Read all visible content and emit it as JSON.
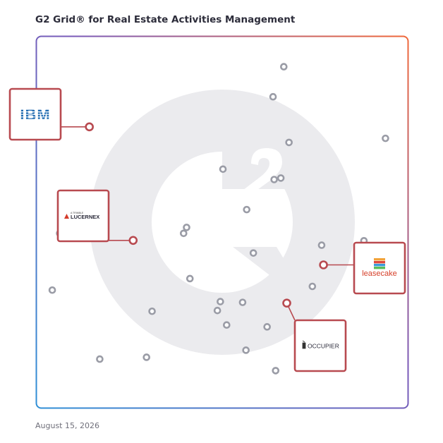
{
  "title": "G2 Grid® for Real Estate Activities Management",
  "date": "August 15, 2026",
  "colors": {
    "frame_start": "#2f8fd6",
    "frame_mid": "#7a5ab8",
    "frame_end": "#f0683a",
    "highlight": "#b84a50",
    "dot": "#9a9ca6",
    "watermark": "#ebebee"
  },
  "chart_data": {
    "type": "scatter",
    "title": "G2 Grid® for Real Estate Activities Management",
    "xlabel": "",
    "ylabel": "",
    "xlim": [
      0,
      1
    ],
    "ylim": [
      0,
      1
    ],
    "grid": true,
    "points": [
      {
        "x": 0.666,
        "y": 0.919
      },
      {
        "x": 0.637,
        "y": 0.838
      },
      {
        "x": 0.94,
        "y": 0.726
      },
      {
        "x": 0.68,
        "y": 0.715
      },
      {
        "x": 0.502,
        "y": 0.643
      },
      {
        "x": 0.64,
        "y": 0.615
      },
      {
        "x": 0.658,
        "y": 0.619
      },
      {
        "x": 0.566,
        "y": 0.534
      },
      {
        "x": 0.404,
        "y": 0.486
      },
      {
        "x": 0.396,
        "y": 0.47
      },
      {
        "x": 0.062,
        "y": 0.47
      },
      {
        "x": 0.882,
        "y": 0.45
      },
      {
        "x": 0.768,
        "y": 0.438
      },
      {
        "x": 0.584,
        "y": 0.417
      },
      {
        "x": 0.413,
        "y": 0.348
      },
      {
        "x": 0.743,
        "y": 0.327
      },
      {
        "x": 0.042,
        "y": 0.317
      },
      {
        "x": 0.495,
        "y": 0.286
      },
      {
        "x": 0.555,
        "y": 0.284
      },
      {
        "x": 0.311,
        "y": 0.26
      },
      {
        "x": 0.487,
        "y": 0.262
      },
      {
        "x": 0.512,
        "y": 0.223
      },
      {
        "x": 0.621,
        "y": 0.218
      },
      {
        "x": 0.564,
        "y": 0.155
      },
      {
        "x": 0.296,
        "y": 0.136
      },
      {
        "x": 0.17,
        "y": 0.131
      },
      {
        "x": 0.644,
        "y": 0.1
      }
    ],
    "highlighted": [
      {
        "name": "IBM",
        "x": 0.142,
        "y": 0.757
      },
      {
        "name": "LUCERNEX",
        "x": 0.26,
        "y": 0.451
      },
      {
        "name": "leasecake",
        "x": 0.773,
        "y": 0.385
      },
      {
        "name": "OCCUPIER",
        "x": 0.674,
        "y": 0.282
      }
    ],
    "vendor_texts": {
      "ibm": "IBM",
      "lucernex_sub": "A TRIMBLE",
      "lucernex": "LUCERNEX",
      "leasecake": "leasecake",
      "occupier": "OCCUPIER"
    }
  }
}
